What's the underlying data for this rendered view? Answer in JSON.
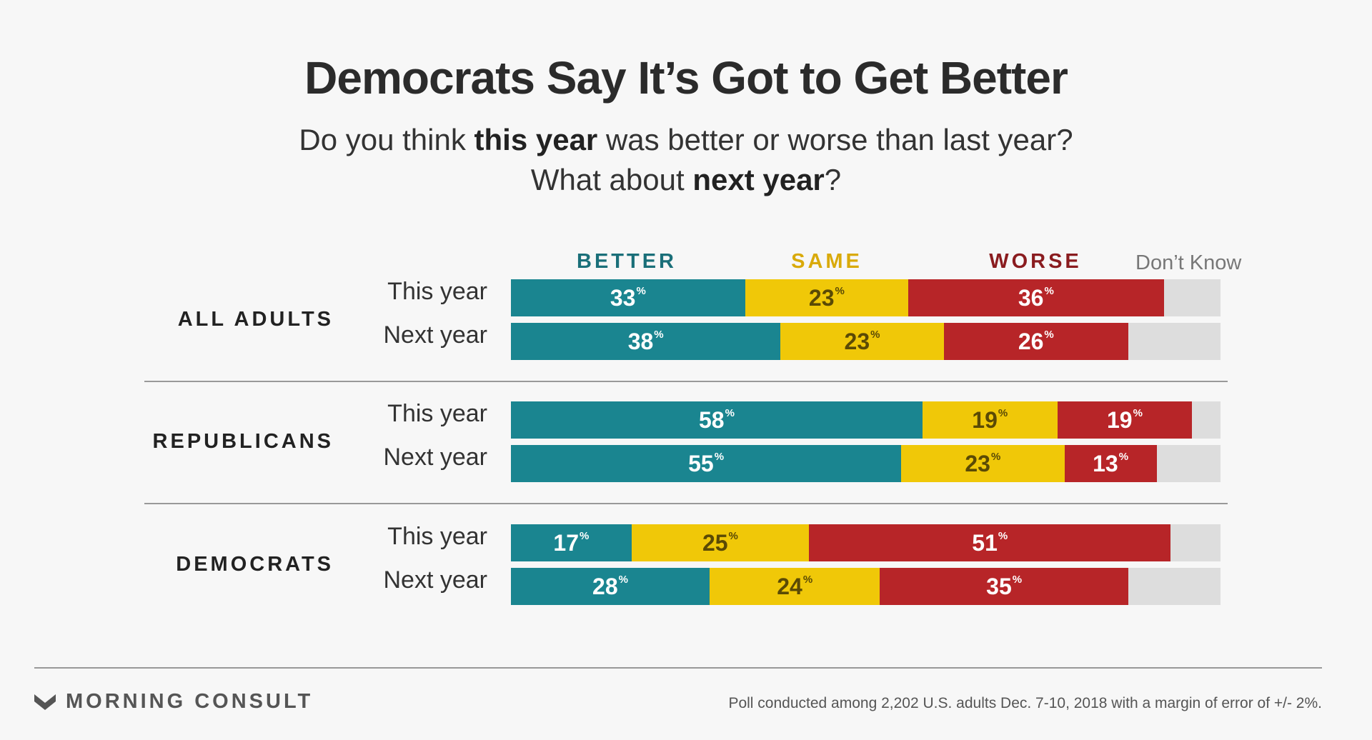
{
  "title": "Democrats Say It’s Got to Get Better",
  "subtitle": {
    "line1": {
      "pre": "Do you think ",
      "bold": "this year",
      "post": " was better or worse than last year?"
    },
    "line2": {
      "pre": "What about ",
      "bold": "next year",
      "post": "?"
    }
  },
  "footer": {
    "brand": "MORNING CONSULT",
    "source": "Poll conducted among 2,202 U.S. adults Dec. 7-10, 2018 with a margin of error of +/- 2%."
  },
  "colors": {
    "better": "#1a8590",
    "same": "#f0c808",
    "worse": "#b72528",
    "dont_know": "#dddddd",
    "better_legend": "#1a6f79",
    "same_legend": "#d9aa0a",
    "worse_legend": "#8a1c1f",
    "dont_know_legend": "#777777"
  },
  "chart_data": {
    "type": "bar",
    "orientation": "horizontal",
    "stacked": true,
    "xlim": [
      0,
      100
    ],
    "percent_sign": "%",
    "series": [
      {
        "name": "BETTER",
        "key": "better"
      },
      {
        "name": "SAME",
        "key": "same"
      },
      {
        "name": "WORSE",
        "key": "worse"
      },
      {
        "name": "Don’t Know",
        "key": "dont_know"
      }
    ],
    "groups": [
      {
        "name": "ALL ADULTS",
        "rows": [
          {
            "label": "This year",
            "better": 33,
            "same": 23,
            "worse": 36
          },
          {
            "label": "Next year",
            "better": 38,
            "same": 23,
            "worse": 26
          }
        ]
      },
      {
        "name": "REPUBLICANS",
        "rows": [
          {
            "label": "This year",
            "better": 58,
            "same": 19,
            "worse": 19
          },
          {
            "label": "Next year",
            "better": 55,
            "same": 23,
            "worse": 13
          }
        ]
      },
      {
        "name": "DEMOCRATS",
        "rows": [
          {
            "label": "This year",
            "better": 17,
            "same": 25,
            "worse": 51
          },
          {
            "label": "Next year",
            "better": 28,
            "same": 24,
            "worse": 35
          }
        ]
      }
    ]
  }
}
